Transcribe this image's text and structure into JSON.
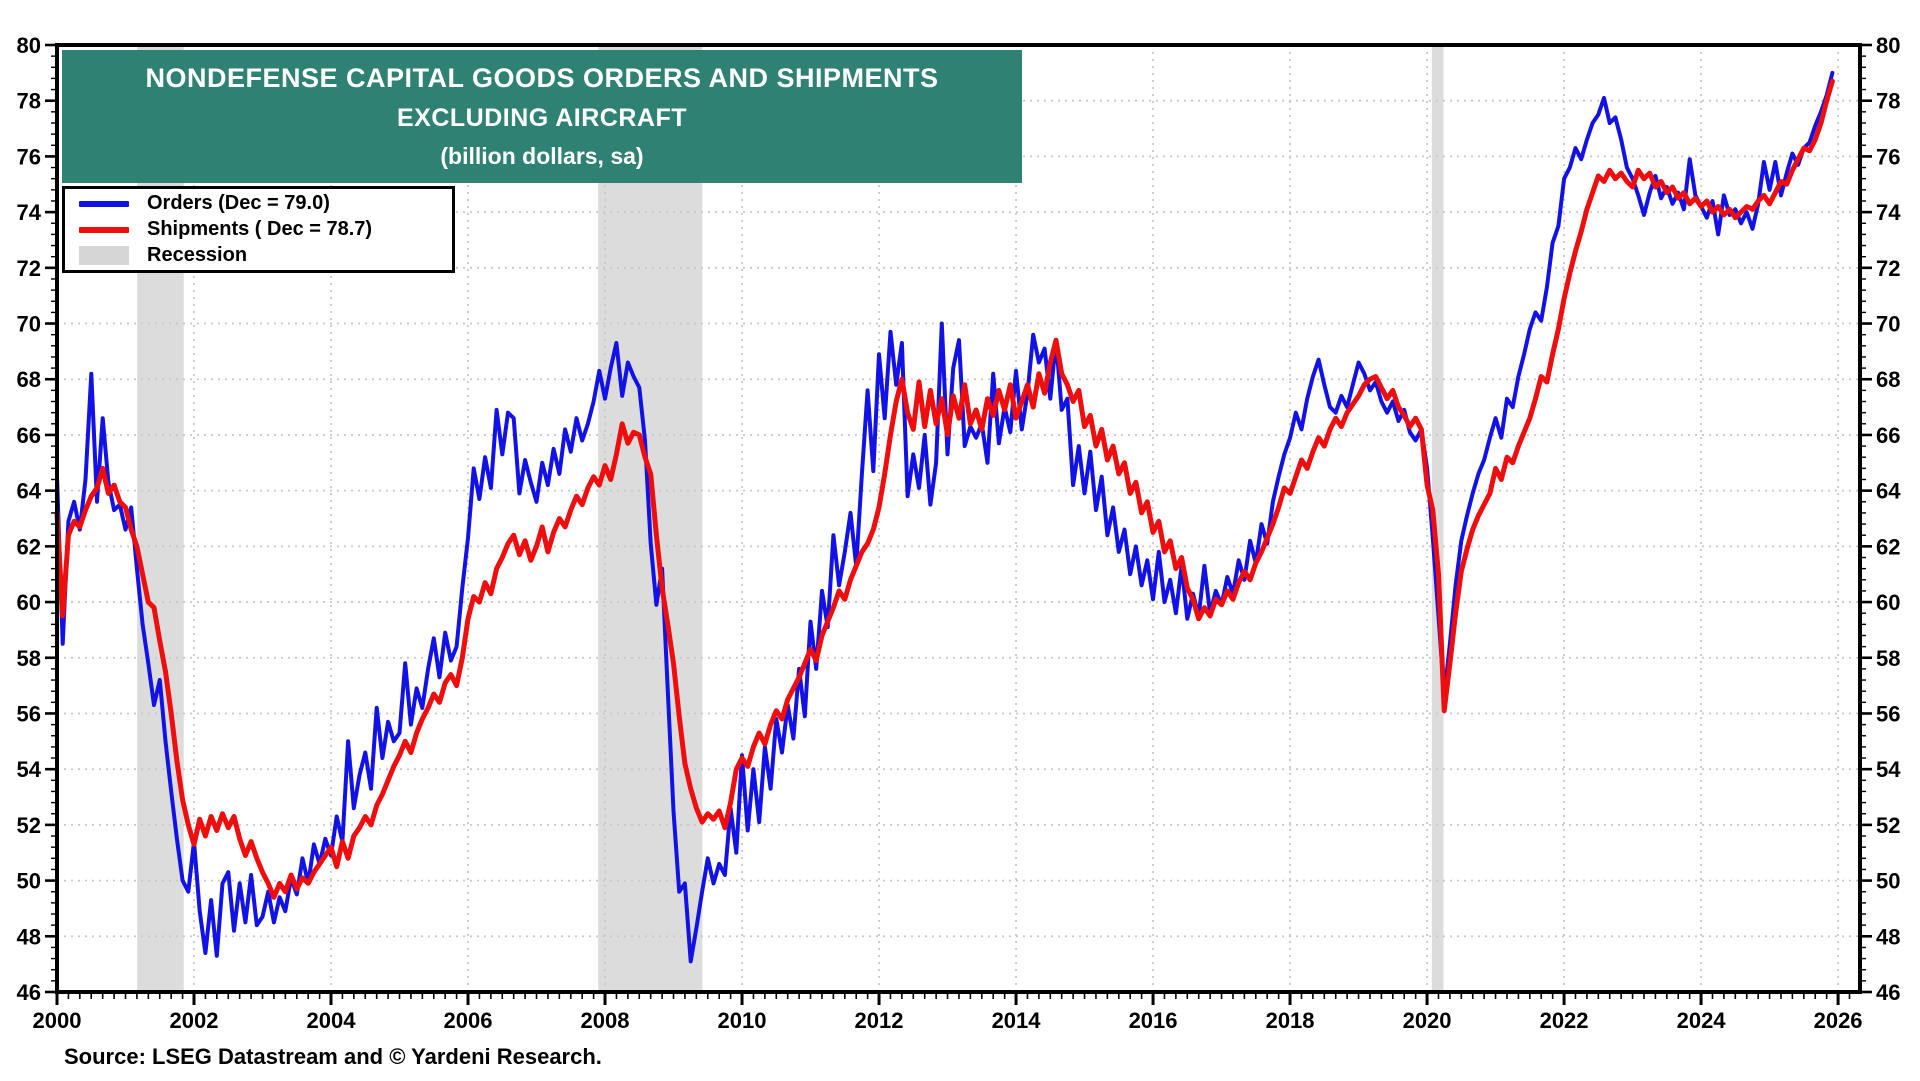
{
  "title": {
    "line1": "NONDEFENSE CAPITAL GOODS ORDERS AND SHIPMENTS",
    "line2": "EXCLUDING AIRCRAFT",
    "line3": "(billion dollars, sa)"
  },
  "legend": {
    "orders_label": "Orders (Dec = 79.0)",
    "shipments_label": "Shipments ( Dec = 78.7)",
    "recession_label": "Recession"
  },
  "source": "Source: LSEG Datastream and © Yardeni Research.",
  "colors": {
    "title_bg": "#2F8273",
    "orders": "#1212E6",
    "shipments": "#EE0E0E",
    "recession_band": "#DCDCDC",
    "legend_swatch": "#D6D6D6",
    "grid": "#c9c9c9",
    "axis": "#000000"
  },
  "chart_data": {
    "type": "line",
    "title": "NONDEFENSE CAPITAL GOODS ORDERS AND SHIPMENTS EXCLUDING AIRCRAFT (billion dollars, sa)",
    "xlabel": "",
    "ylabel": "billion dollars",
    "x_start_year": 2000,
    "x_axis_end": 2026.32,
    "ylim": [
      46,
      80
    ],
    "y_tick_step": 2,
    "y_minor_step": 0.4,
    "x_label_step": 2,
    "x_minor_per_year": 6,
    "grid": "dotted",
    "legend_position": "top-left",
    "x_tick_labels": [
      2000,
      2002,
      2004,
      2006,
      2008,
      2010,
      2012,
      2014,
      2016,
      2018,
      2020,
      2022,
      2024,
      2026
    ],
    "y_tick_labels": [
      46,
      48,
      50,
      52,
      54,
      56,
      58,
      60,
      62,
      64,
      66,
      68,
      70,
      72,
      74,
      76,
      78,
      80
    ],
    "recession_bands": [
      [
        2001.17,
        2001.85
      ],
      [
        2007.9,
        2009.42
      ],
      [
        2020.07,
        2020.24
      ]
    ],
    "monthly_start": "2000-01",
    "monthly_end": "2025-12",
    "series": [
      {
        "name": "Orders",
        "dec_value": 79.0,
        "color": "#1212E6",
        "values": [
          64.5,
          58.5,
          62.9,
          63.6,
          62.6,
          64.4,
          68.2,
          63.6,
          66.6,
          64.3,
          63.3,
          63.5,
          62.6,
          63.4,
          61.2,
          59.2,
          57.8,
          56.3,
          57.2,
          55.0,
          53.2,
          51.5,
          50.0,
          49.6,
          51.4,
          48.9,
          47.4,
          49.3,
          47.3,
          49.9,
          50.3,
          48.2,
          49.9,
          48.5,
          50.2,
          48.4,
          48.7,
          49.6,
          48.5,
          49.4,
          48.9,
          50.1,
          49.5,
          50.8,
          49.9,
          51.3,
          50.6,
          51.5,
          50.9,
          52.3,
          51.4,
          55.0,
          52.6,
          53.8,
          54.6,
          53.3,
          56.2,
          54.4,
          55.7,
          55.0,
          55.3,
          57.8,
          55.6,
          56.9,
          56.2,
          57.6,
          58.7,
          57.3,
          58.9,
          57.9,
          58.4,
          60.5,
          62.3,
          64.8,
          63.7,
          65.2,
          64.1,
          66.9,
          65.3,
          66.8,
          66.6,
          63.9,
          65.1,
          64.3,
          63.6,
          65.0,
          64.2,
          65.5,
          64.6,
          66.2,
          65.4,
          66.6,
          65.8,
          66.4,
          67.2,
          68.3,
          67.3,
          68.4,
          69.3,
          67.4,
          68.6,
          68.1,
          67.7,
          65.8,
          62.1,
          59.9,
          61.2,
          56.8,
          52.5,
          49.6,
          49.9,
          47.1,
          48.3,
          49.6,
          50.8,
          49.9,
          50.6,
          50.2,
          52.6,
          51.0,
          54.5,
          51.8,
          54.0,
          52.1,
          54.8,
          53.3,
          55.8,
          54.6,
          56.3,
          55.1,
          57.6,
          55.9,
          59.3,
          57.6,
          60.4,
          59.1,
          62.4,
          60.6,
          61.8,
          63.2,
          61.3,
          64.6,
          67.6,
          64.7,
          68.9,
          66.6,
          69.7,
          67.8,
          69.3,
          63.8,
          65.3,
          64.1,
          66.0,
          63.5,
          65.0,
          70.0,
          65.3,
          68.4,
          69.4,
          65.6,
          66.3,
          65.9,
          66.4,
          65.0,
          68.2,
          65.7,
          67.0,
          66.1,
          68.3,
          66.2,
          67.5,
          69.6,
          68.6,
          69.1,
          67.3,
          69.4,
          66.9,
          67.3,
          64.2,
          65.6,
          63.9,
          65.4,
          63.3,
          64.5,
          62.4,
          63.4,
          61.8,
          62.6,
          61.0,
          62.0,
          60.6,
          61.5,
          60.1,
          61.8,
          60.0,
          60.8,
          59.6,
          61.3,
          59.4,
          60.3,
          59.5,
          61.3,
          59.6,
          60.4,
          59.9,
          60.9,
          60.3,
          61.5,
          60.8,
          62.2,
          61.4,
          62.8,
          62.1,
          63.6,
          64.5,
          65.3,
          65.9,
          66.8,
          66.2,
          67.3,
          68.1,
          68.7,
          67.8,
          67.0,
          66.8,
          67.4,
          67.0,
          67.8,
          68.6,
          68.2,
          67.6,
          67.9,
          67.2,
          66.8,
          67.2,
          66.5,
          66.9,
          66.1,
          65.8,
          66.2,
          64.8,
          62.3,
          59.5,
          56.6,
          58.5,
          60.6,
          62.2,
          63.1,
          63.9,
          64.6,
          65.1,
          65.9,
          66.6,
          65.9,
          67.3,
          67.0,
          68.1,
          68.9,
          69.8,
          70.4,
          70.1,
          71.3,
          72.9,
          73.5,
          75.2,
          75.6,
          76.3,
          75.9,
          76.6,
          77.2,
          77.5,
          78.1,
          77.2,
          77.4,
          76.6,
          75.6,
          75.2,
          74.6,
          73.9,
          74.7,
          75.3,
          74.5,
          74.9,
          74.3,
          74.7,
          74.1,
          75.9,
          74.6,
          74.2,
          73.8,
          74.4,
          73.2,
          74.6,
          73.9,
          74.1,
          73.6,
          74.0,
          73.4,
          74.3,
          75.8,
          74.8,
          75.8,
          74.6,
          75.4,
          76.1,
          75.7,
          76.3,
          76.5,
          77.1,
          77.6,
          78.2,
          79.0
        ]
      },
      {
        "name": "Shipments",
        "dec_value": 78.7,
        "color": "#EE0E0E",
        "values": [
          63.2,
          59.5,
          62.4,
          62.9,
          62.7,
          63.3,
          63.8,
          64.1,
          64.8,
          63.9,
          64.2,
          63.6,
          63.4,
          62.6,
          62.0,
          61.0,
          60.0,
          59.8,
          58.6,
          57.5,
          56.0,
          54.3,
          52.9,
          52.0,
          51.3,
          52.2,
          51.6,
          52.3,
          51.8,
          52.4,
          51.9,
          52.3,
          51.5,
          50.9,
          51.4,
          50.8,
          50.3,
          49.9,
          49.4,
          49.9,
          49.6,
          50.2,
          49.7,
          50.1,
          49.9,
          50.3,
          50.6,
          50.9,
          51.2,
          50.5,
          51.4,
          50.8,
          51.6,
          51.9,
          52.3,
          52.0,
          52.7,
          53.1,
          53.6,
          54.1,
          54.5,
          55.0,
          54.6,
          55.3,
          55.8,
          56.2,
          56.7,
          56.4,
          57.1,
          57.4,
          57.0,
          58.0,
          59.4,
          60.2,
          60.0,
          60.7,
          60.3,
          61.2,
          61.6,
          62.1,
          62.4,
          61.7,
          62.2,
          61.5,
          62.0,
          62.7,
          61.8,
          62.5,
          63.0,
          62.7,
          63.3,
          63.8,
          63.5,
          64.1,
          64.5,
          64.2,
          64.9,
          64.4,
          65.3,
          66.4,
          65.7,
          66.1,
          66.0,
          65.2,
          64.6,
          62.4,
          60.5,
          59.2,
          57.8,
          55.9,
          54.2,
          53.3,
          52.6,
          52.1,
          52.4,
          52.2,
          52.5,
          51.9,
          52.8,
          54.0,
          54.4,
          54.1,
          54.8,
          55.3,
          54.9,
          55.6,
          56.1,
          55.8,
          56.5,
          56.9,
          57.3,
          57.8,
          58.3,
          57.9,
          58.8,
          59.3,
          59.8,
          60.4,
          60.1,
          60.8,
          61.3,
          61.8,
          62.1,
          62.6,
          63.4,
          64.6,
          66.0,
          67.2,
          68.0,
          66.8,
          66.2,
          67.9,
          66.3,
          67.6,
          66.4,
          67.3,
          66.0,
          67.4,
          66.6,
          67.8,
          66.4,
          66.9,
          66.2,
          67.3,
          66.7,
          67.6,
          66.9,
          67.8,
          66.6,
          67.2,
          67.8,
          67.0,
          68.2,
          67.5,
          68.6,
          69.4,
          68.2,
          67.8,
          67.2,
          67.6,
          66.3,
          66.7,
          65.6,
          66.2,
          65.1,
          65.6,
          64.6,
          65.0,
          63.9,
          64.3,
          63.2,
          63.6,
          62.5,
          62.9,
          61.8,
          62.2,
          61.2,
          61.6,
          60.5,
          60.1,
          59.4,
          59.8,
          59.5,
          60.1,
          59.9,
          60.4,
          60.1,
          60.7,
          61.1,
          60.8,
          61.4,
          61.8,
          62.3,
          62.8,
          63.4,
          64.1,
          63.9,
          64.5,
          65.1,
          64.8,
          65.4,
          65.9,
          65.6,
          66.2,
          66.6,
          66.3,
          66.8,
          67.1,
          67.4,
          67.8,
          68.0,
          68.1,
          67.7,
          67.3,
          67.6,
          67.0,
          66.7,
          66.3,
          66.6,
          66.2,
          64.2,
          63.3,
          61.0,
          56.1,
          57.8,
          59.6,
          61.1,
          61.9,
          62.6,
          63.1,
          63.5,
          63.9,
          64.8,
          64.4,
          65.2,
          65.0,
          65.6,
          66.1,
          66.6,
          67.3,
          68.1,
          67.9,
          68.9,
          69.8,
          70.9,
          71.8,
          72.6,
          73.3,
          74.1,
          74.7,
          75.3,
          75.1,
          75.5,
          75.2,
          75.4,
          75.1,
          74.9,
          75.5,
          75.2,
          75.4,
          74.9,
          75.1,
          74.7,
          74.9,
          74.5,
          74.7,
          74.3,
          74.5,
          74.2,
          74.4,
          74.0,
          74.2,
          73.9,
          74.1,
          73.8,
          74.0,
          74.2,
          74.1,
          74.4,
          74.6,
          74.3,
          74.7,
          75.1,
          75.0,
          75.5,
          75.9,
          76.3,
          76.2,
          76.6,
          77.2,
          78.0,
          78.7
        ]
      }
    ]
  }
}
